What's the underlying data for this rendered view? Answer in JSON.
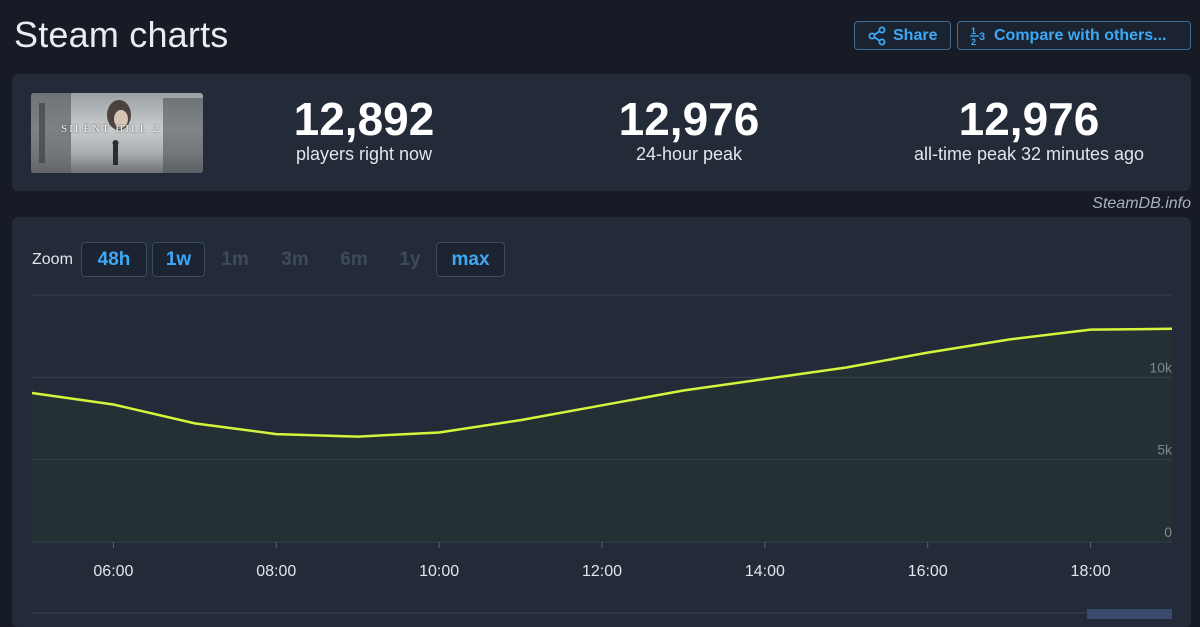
{
  "header": {
    "title": "Steam charts",
    "share_label": "Share",
    "compare_label": "Compare with others..."
  },
  "stats": {
    "game_logo_text": "SILENT HILL 2",
    "players_now": {
      "value": "12,892",
      "label": "players right now"
    },
    "peak_24h": {
      "value": "12,976",
      "label": "24-hour peak"
    },
    "all_time_peak": {
      "value": "12,976",
      "label": "all-time peak 32 minutes ago"
    }
  },
  "credit": "SteamDB.info",
  "zoom": {
    "label": "Zoom",
    "options": [
      {
        "label": "48h",
        "state": "active"
      },
      {
        "label": "1w",
        "state": "active"
      },
      {
        "label": "1m",
        "state": "disabled"
      },
      {
        "label": "3m",
        "state": "disabled"
      },
      {
        "label": "6m",
        "state": "disabled"
      },
      {
        "label": "1y",
        "state": "disabled"
      },
      {
        "label": "max",
        "state": "active"
      }
    ]
  },
  "colors": {
    "line": "#d4f53c",
    "accent": "#3da9f5",
    "panel": "#232b38",
    "background": "#161b25"
  },
  "chart_data": {
    "type": "line",
    "x_ticks": [
      "06:00",
      "08:00",
      "10:00",
      "12:00",
      "14:00",
      "16:00",
      "18:00"
    ],
    "y_ticks": [
      "0",
      "5k",
      "10k"
    ],
    "ylim": [
      0,
      15000
    ],
    "xlim_hours": [
      5,
      19
    ],
    "grid": true,
    "series": [
      {
        "x": [
          5,
          6,
          7,
          8,
          9,
          10,
          11,
          12,
          13,
          14,
          15,
          16,
          17,
          18,
          19
        ],
        "y": [
          9050,
          8350,
          7200,
          6550,
          6400,
          6650,
          7400,
          8300,
          9200,
          9900,
          10600,
          11500,
          12300,
          12900,
          12950
        ]
      }
    ]
  }
}
